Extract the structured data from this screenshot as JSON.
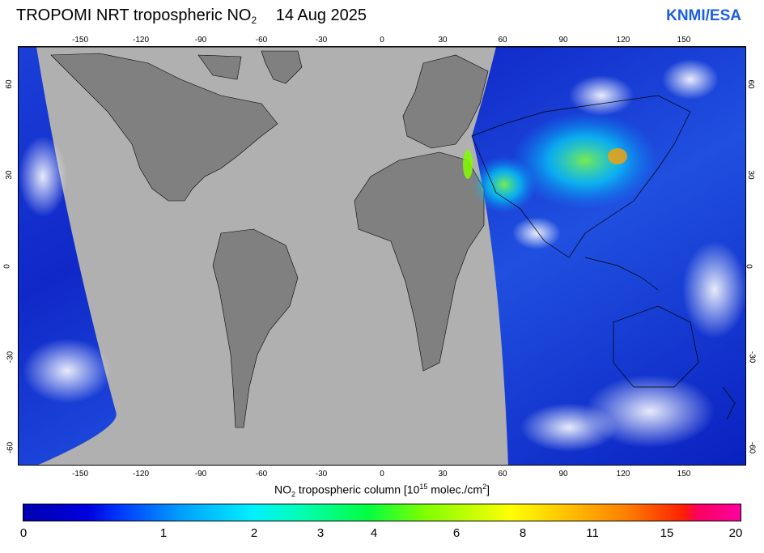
{
  "header": {
    "title_main": "TROPOMI  NRT tropospheric NO",
    "title_sub": "2",
    "date": "14 Aug 2025",
    "brand": "KNMI/ESA"
  },
  "map": {
    "lon_ticks": [
      "-150",
      "-120",
      "-90",
      "-60",
      "-30",
      "0",
      "30",
      "60",
      "90",
      "120",
      "150"
    ],
    "lat_ticks_left": [
      "60",
      "30",
      "0",
      "-30",
      "-60"
    ],
    "lat_ticks_right": [
      "60",
      "30",
      "0",
      "-30",
      "-60"
    ]
  },
  "colorbar": {
    "label_pre": "NO",
    "label_sub": "2",
    "label_mid": " tropospheric column [10",
    "label_sup1": "15",
    "label_mid2": " molec./cm",
    "label_sup2": "2",
    "label_end": "]",
    "ticks": [
      "0",
      "1",
      "2",
      "3",
      "4",
      "6",
      "8",
      "11",
      "15",
      "20"
    ]
  },
  "colors": {
    "land_no_data": "#808080",
    "ocean_no_data": "#b0b0b0",
    "brand": "#1a5fe0"
  }
}
